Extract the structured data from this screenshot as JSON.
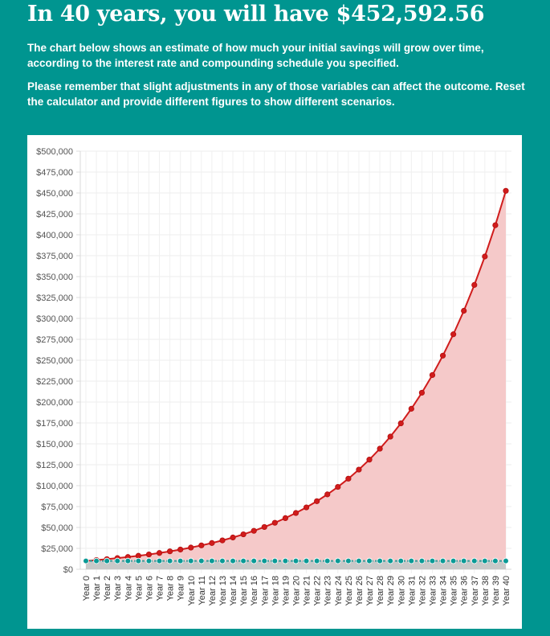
{
  "header": {
    "headline": "In 40 years, you will have $452,592.56",
    "paragraph_1": "The chart below shows an estimate of how much your initial savings will grow over time, according to the interest rate and compounding schedule you specified.",
    "paragraph_2": "Please remember that slight adjustments in any of those variables can affect the outcome. Reset the calculator and provide different figures to show different scenarios."
  },
  "colors": {
    "background": "#009590",
    "growth_line": "#d01c1c",
    "growth_fill": "#f5c9c9",
    "principal_line": "#3b9c9b",
    "principal_point": "#0a9a96",
    "principal_fill": "#c8c8c8"
  },
  "chart_data": {
    "type": "area",
    "title": "",
    "xlabel": "",
    "ylabel": "",
    "ylim": [
      0,
      500000
    ],
    "y_ticks": [
      "$0",
      "$25,000",
      "$50,000",
      "$75,000",
      "$100,000",
      "$125,000",
      "$150,000",
      "$175,000",
      "$200,000",
      "$225,000",
      "$250,000",
      "$275,000",
      "$300,000",
      "$325,000",
      "$350,000",
      "$375,000",
      "$400,000",
      "$425,000",
      "$450,000",
      "$475,000",
      "$500,000"
    ],
    "grid": true,
    "legend": "none",
    "categories": [
      "Year 0",
      "Year 1",
      "Year 2",
      "Year 3",
      "Year 4",
      "Year 5",
      "Year 6",
      "Year 7",
      "Year 8",
      "Year 9",
      "Year 10",
      "Year 11",
      "Year 12",
      "Year 13",
      "Year 14",
      "Year 15",
      "Year 16",
      "Year 17",
      "Year 18",
      "Year 19",
      "Year 20",
      "Year 21",
      "Year 22",
      "Year 23",
      "Year 24",
      "Year 25",
      "Year 26",
      "Year 27",
      "Year 28",
      "Year 29",
      "Year 30",
      "Year 31",
      "Year 32",
      "Year 33",
      "Year 34",
      "Year 35",
      "Year 36",
      "Year 37",
      "Year 38",
      "Year 39",
      "Year 40"
    ],
    "series": [
      {
        "values": [
          10000,
          11000,
          12100,
          13310,
          14641,
          16105,
          17716,
          19487,
          21436,
          23579,
          25937,
          28531,
          31384,
          34523,
          37975,
          41772,
          45950,
          50545,
          55599,
          61159,
          67275,
          74002,
          81403,
          89543,
          98497,
          108347,
          119182,
          131100,
          144210,
          158631,
          174494,
          191943,
          211138,
          232252,
          255477,
          281024,
          309127,
          340039,
          374043,
          411448,
          452593
        ]
      },
      {
        "values": [
          10000,
          10000,
          10000,
          10000,
          10000,
          10000,
          10000,
          10000,
          10000,
          10000,
          10000,
          10000,
          10000,
          10000,
          10000,
          10000,
          10000,
          10000,
          10000,
          10000,
          10000,
          10000,
          10000,
          10000,
          10000,
          10000,
          10000,
          10000,
          10000,
          10000,
          10000,
          10000,
          10000,
          10000,
          10000,
          10000,
          10000,
          10000,
          10000,
          10000,
          10000
        ]
      }
    ]
  }
}
